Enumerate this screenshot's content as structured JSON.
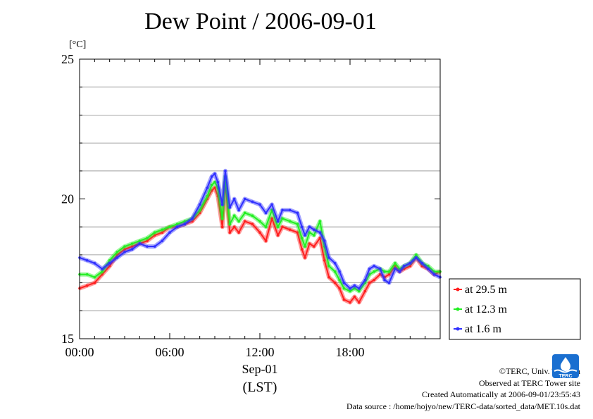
{
  "title": "Dew Point / 2006-09-01",
  "unit_label": "[°C]",
  "chart_data": {
    "type": "line",
    "title": "Dew Point / 2006-09-01",
    "ylabel": "[°C]",
    "xlabel_date": "Sep-01",
    "xlabel_tz": "(LST)",
    "ylim": [
      15,
      25
    ],
    "xlim_hours": [
      0,
      24
    ],
    "yticks": [
      15,
      20,
      25
    ],
    "ygrid": [
      16,
      17,
      18,
      19,
      21,
      22,
      23,
      24
    ],
    "xticks": [
      {
        "hour": 0,
        "label": "00:00"
      },
      {
        "hour": 6,
        "label": "06:00"
      },
      {
        "hour": 12,
        "label": "12:00"
      },
      {
        "hour": 18,
        "label": "18:00"
      }
    ],
    "legend_position": "bottom-right outside",
    "series": [
      {
        "name": "at 29.5 m",
        "color": "#ff2020",
        "x": [
          0,
          0.5,
          1,
          1.5,
          2,
          2.5,
          3,
          3.5,
          4,
          4.5,
          5,
          5.5,
          6,
          6.5,
          7,
          7.5,
          8,
          8.5,
          8.8,
          9,
          9.2,
          9.5,
          9.7,
          10,
          10.3,
          10.6,
          11,
          11.5,
          12,
          12.4,
          12.8,
          13.2,
          13.5,
          14,
          14.5,
          14.8,
          15,
          15.3,
          15.6,
          16,
          16.3,
          16.6,
          17,
          17.3,
          17.6,
          18,
          18.3,
          18.6,
          19,
          19.3,
          19.6,
          20,
          20.3,
          20.6,
          21,
          21.3,
          21.6,
          22,
          22.4,
          22.8,
          23.2,
          23.6,
          24
        ],
        "values": [
          16.8,
          16.9,
          17.0,
          17.3,
          17.6,
          18.0,
          18.2,
          18.3,
          18.4,
          18.5,
          18.7,
          18.8,
          19.0,
          19.0,
          19.1,
          19.2,
          19.5,
          20.0,
          20.3,
          20.4,
          20.1,
          19.0,
          20.6,
          18.8,
          19.0,
          18.8,
          19.2,
          19.1,
          18.8,
          18.5,
          19.3,
          18.7,
          19.0,
          18.9,
          18.8,
          18.2,
          17.9,
          18.4,
          18.3,
          18.6,
          17.8,
          17.2,
          17.0,
          16.8,
          16.4,
          16.3,
          16.5,
          16.3,
          16.7,
          17.0,
          17.1,
          17.3,
          17.2,
          17.3,
          17.6,
          17.4,
          17.5,
          17.6,
          17.9,
          17.6,
          17.5,
          17.3,
          17.4
        ]
      },
      {
        "name": "at 12.3 m",
        "color": "#22ee22",
        "x": [
          0,
          0.5,
          1,
          1.5,
          2,
          2.5,
          3,
          3.5,
          4,
          4.5,
          5,
          5.5,
          6,
          6.5,
          7,
          7.5,
          8,
          8.5,
          8.8,
          9,
          9.2,
          9.5,
          9.7,
          10,
          10.3,
          10.6,
          11,
          11.5,
          12,
          12.4,
          12.8,
          13.2,
          13.5,
          14,
          14.5,
          14.8,
          15,
          15.3,
          15.6,
          16,
          16.3,
          16.6,
          17,
          17.3,
          17.6,
          18,
          18.3,
          18.6,
          19,
          19.3,
          19.6,
          20,
          20.3,
          20.6,
          21,
          21.3,
          21.6,
          22,
          22.4,
          22.8,
          23.2,
          23.6,
          24
        ],
        "values": [
          17.3,
          17.3,
          17.2,
          17.4,
          17.8,
          18.1,
          18.3,
          18.4,
          18.5,
          18.6,
          18.8,
          18.9,
          19.0,
          19.1,
          19.2,
          19.3,
          19.6,
          20.1,
          20.5,
          20.6,
          20.4,
          19.3,
          20.8,
          19.1,
          19.4,
          19.2,
          19.5,
          19.4,
          19.2,
          19.0,
          19.6,
          19.0,
          19.3,
          19.2,
          19.1,
          18.6,
          18.3,
          18.8,
          18.7,
          19.2,
          18.3,
          17.6,
          17.4,
          17.1,
          16.8,
          16.7,
          16.8,
          16.7,
          17.0,
          17.3,
          17.4,
          17.5,
          17.4,
          17.4,
          17.7,
          17.5,
          17.6,
          17.7,
          18.0,
          17.7,
          17.6,
          17.4,
          17.4
        ]
      },
      {
        "name": "at 1.6 m",
        "color": "#3030ff",
        "x": [
          0,
          0.5,
          1,
          1.5,
          2,
          2.5,
          3,
          3.5,
          4,
          4.5,
          5,
          5.5,
          6,
          6.5,
          7,
          7.5,
          8,
          8.5,
          8.8,
          9,
          9.2,
          9.5,
          9.7,
          10,
          10.3,
          10.6,
          11,
          11.5,
          12,
          12.4,
          12.8,
          13.2,
          13.5,
          14,
          14.5,
          14.8,
          15,
          15.3,
          15.6,
          16,
          16.3,
          16.6,
          17,
          17.3,
          17.6,
          18,
          18.3,
          18.6,
          19,
          19.3,
          19.6,
          20,
          20.3,
          20.6,
          21,
          21.3,
          21.6,
          22,
          22.4,
          22.8,
          23.2,
          23.6,
          24
        ],
        "values": [
          17.9,
          17.8,
          17.7,
          17.5,
          17.7,
          17.9,
          18.1,
          18.2,
          18.4,
          18.3,
          18.3,
          18.5,
          18.8,
          19.0,
          19.1,
          19.3,
          19.8,
          20.4,
          20.8,
          20.9,
          20.6,
          19.8,
          21.0,
          19.7,
          20.0,
          19.6,
          20.0,
          19.9,
          19.8,
          19.5,
          19.8,
          19.2,
          19.6,
          19.6,
          19.5,
          19.0,
          18.7,
          19.0,
          18.9,
          18.8,
          18.5,
          17.9,
          17.7,
          17.4,
          17.0,
          16.8,
          16.9,
          16.8,
          17.1,
          17.5,
          17.6,
          17.5,
          17.1,
          17.0,
          17.5,
          17.4,
          17.6,
          17.7,
          17.9,
          17.7,
          17.5,
          17.3,
          17.2
        ]
      }
    ]
  },
  "footer": {
    "copyright": "©TERC, Univ. Tsukuba",
    "site": "Observed at TERC Tower site",
    "created": "Created Automatically at 2006-09-01/23:55:43",
    "source": "Data source : /home/hojyo/new/TERC-data/sorted_data/MET.10s.dat"
  },
  "logo_text": "TERC",
  "logo_icon": "terc-logo-icon"
}
